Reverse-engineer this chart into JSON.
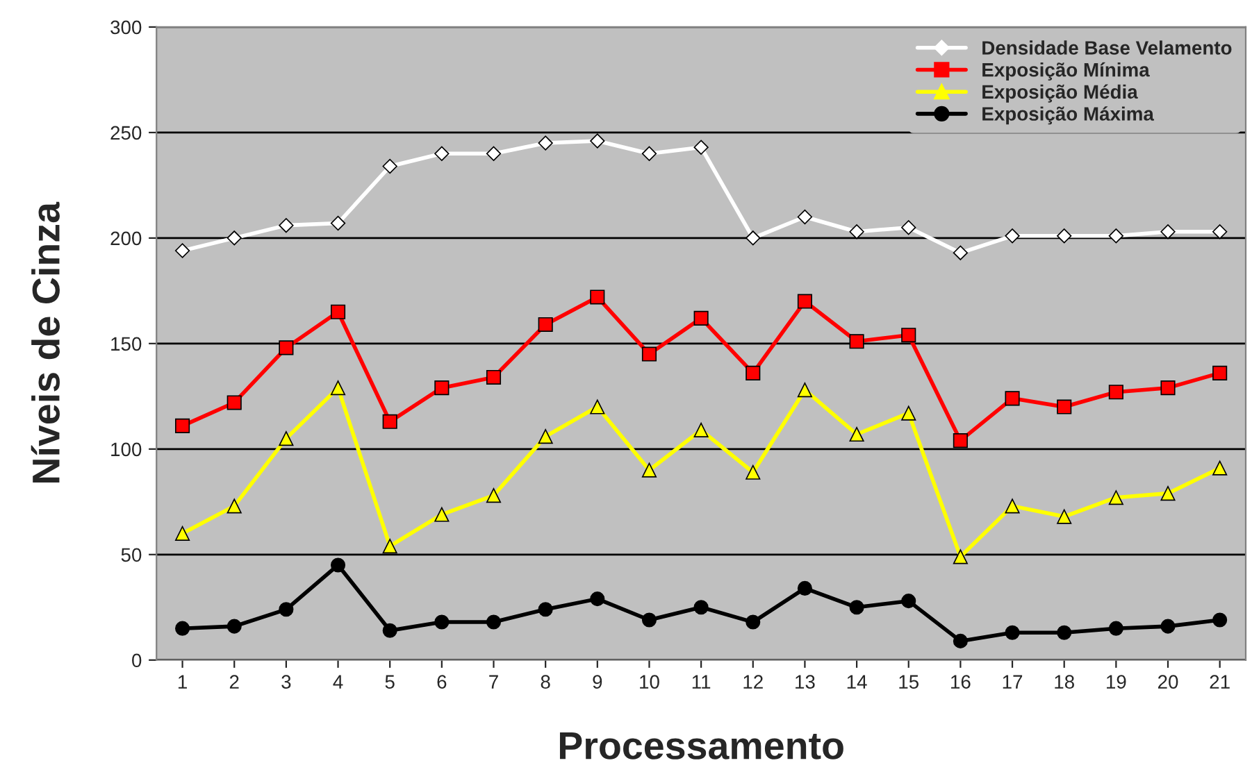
{
  "chart_data": {
    "type": "line",
    "xlabel": "Processamento",
    "ylabel": "Níveis de Cinza",
    "categories": [
      "1",
      "2",
      "3",
      "4",
      "5",
      "6",
      "7",
      "8",
      "9",
      "10",
      "11",
      "12",
      "13",
      "14",
      "15",
      "16",
      "17",
      "18",
      "19",
      "20",
      "21"
    ],
    "series": [
      {
        "name": "Densidade Base Velamento",
        "color": "#ffffff",
        "marker": "diamond",
        "values": [
          194,
          200,
          206,
          207,
          234,
          240,
          240,
          245,
          246,
          240,
          243,
          200,
          210,
          203,
          205,
          193,
          201,
          201,
          201,
          203,
          203
        ]
      },
      {
        "name": "Exposição Mínima",
        "color": "#ff0000",
        "marker": "square",
        "values": [
          111,
          122,
          148,
          165,
          113,
          129,
          134,
          159,
          172,
          145,
          162,
          136,
          170,
          151,
          154,
          104,
          124,
          120,
          127,
          129,
          136
        ]
      },
      {
        "name": "Exposição Média",
        "color": "#ffff00",
        "marker": "triangle",
        "values": [
          60,
          73,
          105,
          129,
          54,
          69,
          78,
          106,
          120,
          90,
          109,
          89,
          128,
          107,
          117,
          49,
          73,
          68,
          77,
          79,
          91
        ]
      },
      {
        "name": "Exposição Máxima",
        "color": "#000000",
        "marker": "circle",
        "values": [
          15,
          16,
          24,
          45,
          14,
          18,
          18,
          24,
          29,
          19,
          25,
          18,
          34,
          25,
          28,
          9,
          13,
          13,
          15,
          16,
          19
        ]
      }
    ],
    "ylim": [
      0,
      300
    ],
    "yticks": [
      0,
      50,
      100,
      150,
      200,
      250,
      300
    ],
    "grid": "y",
    "legend": "top right",
    "line_style": "solid"
  }
}
